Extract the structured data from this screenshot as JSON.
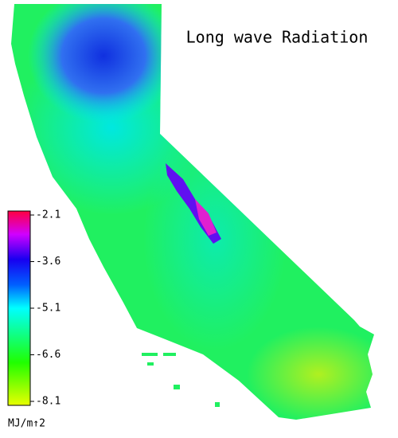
{
  "title": "Long wave Radiation",
  "colorbar": {
    "lim": [
      -8.1,
      -2.1
    ],
    "ticks": [
      -2.1,
      -3.6,
      -5.1,
      -6.6,
      -8.1
    ],
    "unit": "MJ/m↑2"
  }
}
